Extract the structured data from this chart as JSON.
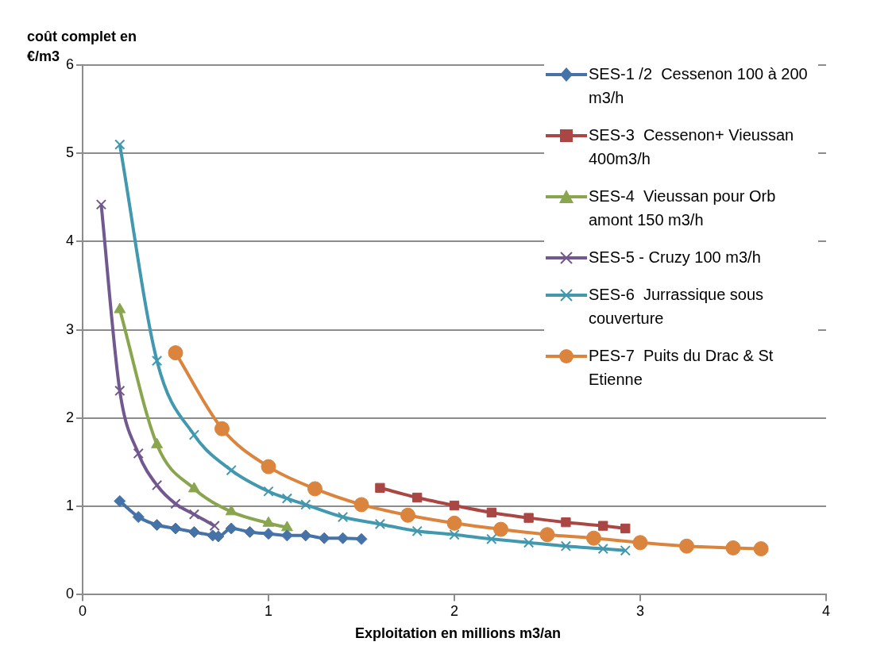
{
  "chart_data": {
    "type": "line",
    "ylabel": "coût complet en €/m3",
    "xlabel": "Exploitation en millions m3/an",
    "xlim": [
      0,
      4
    ],
    "xticks": [
      0,
      1,
      2,
      3,
      4
    ],
    "ylim": [
      0,
      6
    ],
    "yticks": [
      0,
      1,
      2,
      3,
      4,
      5,
      6
    ],
    "grid": "y",
    "legend": "top right",
    "series": [
      {
        "name": "SES-1 /2  Cessenon 100 à 200 m3/h",
        "color": "#4572a7",
        "marker": "diamond",
        "x": [
          0.2,
          0.3,
          0.4,
          0.5,
          0.6,
          0.7,
          0.73,
          0.8,
          0.9,
          1.0,
          1.1,
          1.2,
          1.3,
          1.4,
          1.5
        ],
        "values": [
          1.06,
          0.88,
          0.79,
          0.75,
          0.71,
          0.67,
          0.66,
          0.75,
          0.71,
          0.69,
          0.67,
          0.67,
          0.64,
          0.64,
          0.63
        ]
      },
      {
        "name": "SES-3  Cessenon+ Vieussan 400m3/h",
        "color": "#aa4643",
        "marker": "square",
        "x": [
          1.6,
          1.8,
          2.0,
          2.2,
          2.4,
          2.6,
          2.8,
          2.92
        ],
        "values": [
          1.21,
          1.1,
          1.01,
          0.93,
          0.87,
          0.82,
          0.78,
          0.75
        ]
      },
      {
        "name": "SES-4  Vieussan pour Orb amont 150 m3/h",
        "color": "#89a54e",
        "marker": "triangle",
        "x": [
          0.2,
          0.4,
          0.6,
          0.8,
          1.0,
          1.1
        ],
        "values": [
          3.23,
          1.7,
          1.2,
          0.94,
          0.81,
          0.76
        ]
      },
      {
        "name": "SES-5 - Cruzy 100 m3/h",
        "color": "#71588f",
        "marker": "cross",
        "x": [
          0.1,
          0.2,
          0.3,
          0.4,
          0.5,
          0.6,
          0.71
        ],
        "values": [
          4.42,
          2.31,
          1.6,
          1.24,
          1.03,
          0.91,
          0.78
        ]
      },
      {
        "name": "SES-6  Jurrassique sous couverture",
        "color": "#4198af",
        "marker": "cross",
        "x": [
          0.2,
          0.4,
          0.6,
          0.8,
          1.0,
          1.1,
          1.2,
          1.4,
          1.6,
          1.8,
          2.0,
          2.2,
          2.4,
          2.6,
          2.8,
          2.92
        ],
        "values": [
          5.1,
          2.65,
          1.81,
          1.41,
          1.17,
          1.09,
          1.02,
          0.88,
          0.8,
          0.72,
          0.68,
          0.63,
          0.59,
          0.55,
          0.52,
          0.5
        ]
      },
      {
        "name": "PES-7  Puits du Drac & St Etienne",
        "color": "#db843d",
        "marker": "circle",
        "x": [
          0.5,
          0.75,
          1.0,
          1.25,
          1.5,
          1.75,
          2.0,
          2.25,
          2.5,
          2.75,
          3.0,
          3.25,
          3.5,
          3.65
        ],
        "values": [
          2.74,
          1.88,
          1.45,
          1.2,
          1.02,
          0.9,
          0.81,
          0.74,
          0.68,
          0.64,
          0.59,
          0.55,
          0.53,
          0.52
        ]
      }
    ]
  }
}
